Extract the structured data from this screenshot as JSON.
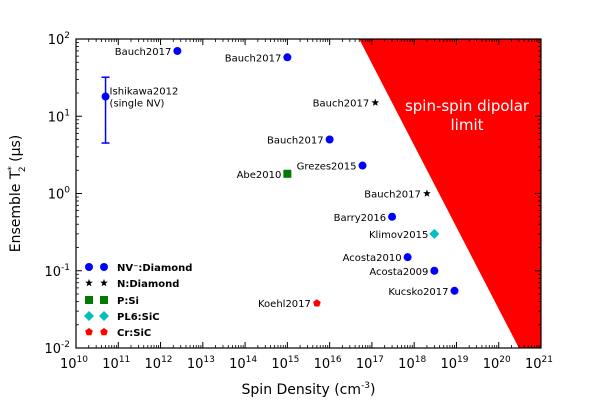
{
  "chart_data": {
    "type": "scatter",
    "x_scale": "log",
    "y_scale": "log",
    "xlim": [
      10000000000.0,
      1e+21
    ],
    "ylim": [
      0.01,
      100
    ],
    "xlabel_main": "Spin Density (cm",
    "xlabel_sup": "-3",
    "xlabel_tail": ")",
    "ylabel_main": "Ensemble T",
    "ylabel_sub": "2",
    "ylabel_sup": "*",
    "ylabel_tail": " (μs)",
    "x_ticks": [
      {
        "base": "10",
        "exp": "10",
        "value": 10000000000.0
      },
      {
        "base": "10",
        "exp": "11",
        "value": 100000000000.0
      },
      {
        "base": "10",
        "exp": "12",
        "value": 1000000000000.0
      },
      {
        "base": "10",
        "exp": "13",
        "value": 10000000000000.0
      },
      {
        "base": "10",
        "exp": "14",
        "value": 100000000000000.0
      },
      {
        "base": "10",
        "exp": "15",
        "value": 1000000000000000.0
      },
      {
        "base": "10",
        "exp": "16",
        "value": 1e+16
      },
      {
        "base": "10",
        "exp": "17",
        "value": 1e+17
      },
      {
        "base": "10",
        "exp": "18",
        "value": 1e+18
      },
      {
        "base": "10",
        "exp": "19",
        "value": 1e+19
      },
      {
        "base": "10",
        "exp": "20",
        "value": 1e+20
      },
      {
        "base": "10",
        "exp": "21",
        "value": 1e+21
      }
    ],
    "y_ticks": [
      {
        "base": "10",
        "exp": "-2",
        "value": 0.01
      },
      {
        "base": "10",
        "exp": "-1",
        "value": 0.1
      },
      {
        "base": "10",
        "exp": "0",
        "value": 1
      },
      {
        "base": "10",
        "exp": "1",
        "value": 10
      },
      {
        "base": "10",
        "exp": "2",
        "value": 100
      }
    ],
    "region": {
      "label_lines": [
        "spin-spin dipolar",
        "limit"
      ],
      "color": "#ff0000",
      "label_color": "#ffffff",
      "boundary": [
        [
          5e+16,
          100
        ],
        [
          3e+20,
          0.01
        ]
      ]
    },
    "series": [
      {
        "name": "NV⁻:Diamond",
        "marker": "circle",
        "color": "#0000ff",
        "points": [
          {
            "x": 2500000000000.0,
            "y": 70,
            "label": "Bauch2017",
            "label_side": "left"
          },
          {
            "x": 1000000000000000.0,
            "y": 58,
            "label": "Bauch2017",
            "label_side": "left"
          },
          {
            "x": 50000000000.0,
            "y": 18,
            "label_lines": [
              "Ishikawa2012",
              "(single NV)"
            ],
            "label_side": "right",
            "error": [
              4.5,
              32
            ]
          },
          {
            "x": 1e+16,
            "y": 5,
            "label": "Bauch2017",
            "label_side": "left"
          },
          {
            "x": 6e+16,
            "y": 2.3,
            "label": "Grezes2015",
            "label_side": "left"
          },
          {
            "x": 3e+17,
            "y": 0.5,
            "label": "Barry2016",
            "label_side": "left"
          },
          {
            "x": 7e+17,
            "y": 0.15,
            "label": "Acosta2010",
            "label_side": "left"
          },
          {
            "x": 3e+18,
            "y": 0.1,
            "label": "Acosta2009",
            "label_side": "left"
          },
          {
            "x": 9e+18,
            "y": 0.055,
            "label": "Kucsko2017",
            "label_side": "left"
          }
        ]
      },
      {
        "name": "N:Diamond",
        "marker": "star",
        "color": "#000000",
        "points": [
          {
            "x": 1.2e+17,
            "y": 15,
            "label": "Bauch2017",
            "label_side": "left"
          },
          {
            "x": 2e+18,
            "y": 1,
            "label": "Bauch2017",
            "label_side": "left"
          }
        ]
      },
      {
        "name": "P:Si",
        "marker": "square",
        "color": "#007a00",
        "points": [
          {
            "x": 1000000000000000.0,
            "y": 1.8,
            "label": "Abe2010",
            "label_side": "left"
          }
        ]
      },
      {
        "name": "PL6:SiC",
        "marker": "diamond",
        "color": "#00c0c0",
        "points": [
          {
            "x": 3e+18,
            "y": 0.3,
            "label": "Klimov2015",
            "label_side": "left"
          }
        ]
      },
      {
        "name": "Cr:SiC",
        "marker": "pentagon",
        "color": "#ff0000",
        "points": [
          {
            "x": 5000000000000000.0,
            "y": 0.038,
            "label": "Koehl2017",
            "label_side": "left"
          }
        ]
      }
    ],
    "legend_position": "lower-left"
  }
}
